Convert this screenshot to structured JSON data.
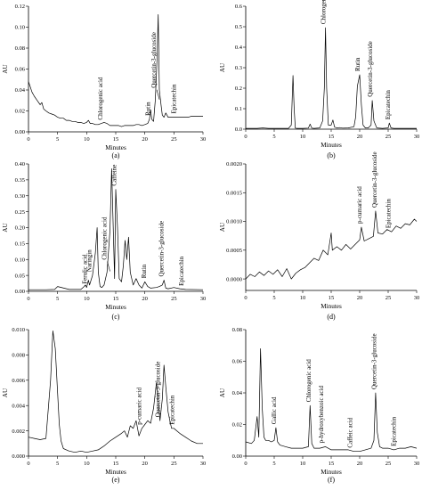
{
  "chart_data": [
    {
      "type": "line",
      "panel_label": "(a)",
      "xlabel": "Minutes",
      "ylabel": "AU",
      "xlim": [
        0,
        30
      ],
      "ylim": [
        0,
        0.12
      ],
      "xticks": [
        0,
        5,
        10,
        15,
        20,
        25,
        30
      ],
      "yticks": [
        0.0,
        0.02,
        0.04,
        0.06,
        0.08,
        0.1,
        0.12
      ],
      "ytick_labels": [
        "0.00",
        "0.02",
        "0.04",
        "0.06",
        "0.08",
        "0.10",
        "0.12"
      ],
      "x": [
        0,
        0.3,
        0.6,
        1,
        1.5,
        2,
        2.3,
        2.6,
        3,
        3.5,
        4,
        4.5,
        5,
        5.5,
        6,
        6.5,
        7,
        7.5,
        8,
        8.5,
        9,
        9.5,
        10,
        10.3,
        10.6,
        11,
        11.5,
        12,
        12.5,
        13,
        13.5,
        14,
        14.5,
        15,
        15.5,
        16,
        16.5,
        17,
        17.5,
        18,
        18.5,
        19,
        19.5,
        20,
        20.5,
        20.8,
        21,
        21.2,
        21.5,
        21.8,
        22,
        22.1,
        22.3,
        22.5,
        22.8,
        23,
        23.3,
        23.6,
        24,
        24.5,
        25,
        25.5,
        26,
        26.5,
        27,
        27.5,
        28,
        28.5,
        29,
        29.5,
        30
      ],
      "y": [
        0.048,
        0.043,
        0.038,
        0.034,
        0.03,
        0.026,
        0.028,
        0.022,
        0.02,
        0.018,
        0.017,
        0.016,
        0.014,
        0.013,
        0.013,
        0.011,
        0.011,
        0.01,
        0.01,
        0.009,
        0.009,
        0.008,
        0.009,
        0.011,
        0.008,
        0.008,
        0.007,
        0.007,
        0.008,
        0.009,
        0.008,
        0.006,
        0.006,
        0.006,
        0.006,
        0.005,
        0.006,
        0.006,
        0.006,
        0.006,
        0.007,
        0.007,
        0.006,
        0.007,
        0.008,
        0.012,
        0.021,
        0.012,
        0.01,
        0.03,
        0.055,
        0.07,
        0.112,
        0.04,
        0.025,
        0.016,
        0.014,
        0.018,
        0.014,
        0.014,
        0.014,
        0.014,
        0.014,
        0.014,
        0.014,
        0.014,
        0.015,
        0.015,
        0.015,
        0.015,
        0.015
      ],
      "annotations": [
        {
          "text": "Chlorogenic acid",
          "x": 12.7
        },
        {
          "text": "Rutin",
          "x": 20.9
        },
        {
          "text": "Quercetin-3-glucoside",
          "x": 21.9,
          "arrow": true
        },
        {
          "text": "Epicatechin",
          "x": 25.3
        }
      ]
    },
    {
      "type": "line",
      "panel_label": "(b)",
      "xlabel": "Minutes",
      "ylabel": "AU",
      "xlim": [
        0,
        30
      ],
      "ylim": [
        0,
        0.6
      ],
      "xticks": [
        0,
        5,
        10,
        15,
        20,
        25,
        30
      ],
      "yticks": [
        0.0,
        0.1,
        0.2,
        0.3,
        0.4,
        0.5,
        0.6
      ],
      "ytick_labels": [
        "0.0",
        "0.1",
        "0.2",
        "0.3",
        "0.4",
        "0.5",
        "0.6"
      ],
      "x": [
        0,
        2,
        3,
        4,
        6,
        7.5,
        8,
        8.3,
        8.5,
        8.7,
        9,
        10,
        11,
        11.3,
        11.6,
        12,
        13,
        13.5,
        13.8,
        14,
        14.2,
        14.5,
        15,
        15.3,
        15.6,
        16,
        16.5,
        17,
        18,
        19,
        19.3,
        19.6,
        20,
        20.3,
        20.6,
        21,
        21.5,
        22,
        22.2,
        22.5,
        23,
        24,
        25,
        25.2,
        25.5,
        26,
        27,
        28,
        30
      ],
      "y": [
        0.004,
        0.004,
        0.006,
        0.004,
        0.004,
        0.004,
        0.02,
        0.262,
        0.1,
        0.005,
        0.004,
        0.004,
        0.005,
        0.025,
        0.005,
        0.004,
        0.006,
        0.04,
        0.2,
        0.495,
        0.2,
        0.02,
        0.02,
        0.045,
        0.01,
        0.006,
        0.008,
        0.005,
        0.006,
        0.012,
        0.06,
        0.21,
        0.265,
        0.12,
        0.02,
        0.006,
        0.006,
        0.02,
        0.14,
        0.04,
        0.006,
        0.004,
        0.006,
        0.03,
        0.006,
        0.004,
        0.004,
        0.004,
        0.004
      ],
      "annotations": [
        {
          "text": "Chlorogenic acid",
          "x": 14.0
        },
        {
          "text": "Rutin",
          "x": 20.0
        },
        {
          "text": "Quercetin-3-glucoside",
          "x": 22.2
        },
        {
          "text": "Epicatechin",
          "x": 25.3
        }
      ]
    },
    {
      "type": "line",
      "panel_label": "(c)",
      "xlabel": "Minutes",
      "ylabel": "AU",
      "xlim": [
        0,
        30
      ],
      "ylim": [
        0,
        0.4
      ],
      "xticks": [
        0,
        5,
        10,
        15,
        20,
        25,
        30
      ],
      "yticks": [
        0.0,
        0.05,
        0.1,
        0.15,
        0.2,
        0.25,
        0.3,
        0.35,
        0.4
      ],
      "ytick_labels": [
        "0.00",
        "0.05",
        "0.10",
        "0.15",
        "0.20",
        "0.25",
        "0.30",
        "0.35",
        "0.40"
      ],
      "x": [
        0,
        3,
        4.5,
        5,
        7,
        9,
        9.5,
        9.8,
        10,
        10.3,
        10.5,
        11,
        11.5,
        11.8,
        12,
        12.3,
        12.6,
        13,
        13.5,
        14,
        14.3,
        14.5,
        14.8,
        15,
        15.3,
        15.6,
        16,
        16.3,
        16.6,
        16.9,
        17.2,
        17.5,
        18,
        18.5,
        19,
        19.5,
        20,
        20.5,
        21,
        22,
        22.5,
        23,
        23.3,
        23.6,
        24,
        25,
        26,
        27,
        30
      ],
      "y": [
        0.005,
        0.005,
        0.006,
        0.015,
        0.006,
        0.006,
        0.014,
        0.02,
        0.012,
        0.035,
        0.02,
        0.05,
        0.12,
        0.2,
        0.06,
        0.015,
        0.012,
        0.02,
        0.06,
        0.19,
        0.385,
        0.25,
        0.04,
        0.32,
        0.2,
        0.04,
        0.03,
        0.08,
        0.16,
        0.1,
        0.17,
        0.06,
        0.02,
        0.04,
        0.02,
        0.01,
        0.03,
        0.015,
        0.01,
        0.012,
        0.015,
        0.02,
        0.035,
        0.01,
        0.008,
        0.012,
        0.008,
        0.006,
        0.005
      ],
      "annotations": [
        {
          "text": "Ferulic acid",
          "x": 10.0
        },
        {
          "text": "Naringin",
          "x": 10.8
        },
        {
          "text": "Chlorogenic acid",
          "x": 13.4,
          "arrow": true
        },
        {
          "text": "Caffeine",
          "x": 15.1
        },
        {
          "text": "Rutin",
          "x": 20.2
        },
        {
          "text": "Quercetin-3-glucoside",
          "x": 23.2
        },
        {
          "text": "Epicatechin",
          "x": 26.6
        }
      ]
    },
    {
      "type": "line",
      "panel_label": "(d)",
      "xlabel": "Minutes",
      "ylabel": "AU",
      "xlim": [
        0,
        30
      ],
      "ylim": [
        -0.0002,
        0.002
      ],
      "xticks": [
        0,
        5,
        10,
        15,
        20,
        25,
        30
      ],
      "yticks": [
        0.0,
        0.0005,
        0.001,
        0.0015,
        0.002
      ],
      "ytick_labels": [
        "0.0000",
        "0.0005",
        "0.0010",
        "0.0015",
        "0.0020"
      ],
      "x": [
        0,
        0.8,
        1.6,
        2.4,
        3.2,
        4,
        4.8,
        5.6,
        6.4,
        7.2,
        8,
        8.8,
        9.6,
        10.4,
        11.2,
        12,
        12.8,
        13.6,
        14.4,
        15,
        15.2,
        16,
        16.8,
        17.6,
        18.4,
        19.2,
        20,
        20.3,
        20.8,
        21.6,
        22.4,
        22.8,
        23.2,
        24,
        24.8,
        25.6,
        26.4,
        27.2,
        28,
        28.8,
        29.6,
        30
      ],
      "y": [
        0.0,
        8e-05,
        4e-05,
        0.00012,
        6e-05,
        0.00014,
        8e-05,
        0.00016,
        4e-05,
        0.00018,
        0.0,
        0.0001,
        0.00016,
        0.0002,
        0.00028,
        0.00036,
        0.00032,
        0.0005,
        0.00042,
        0.0008,
        0.0005,
        0.00056,
        0.0005,
        0.0006,
        0.00052,
        0.0006,
        0.00068,
        0.0009,
        0.00066,
        0.0007,
        0.00074,
        0.00118,
        0.0008,
        0.00078,
        0.00086,
        0.00082,
        0.00092,
        0.00088,
        0.00096,
        0.00094,
        0.00104,
        0.001
      ],
      "annotations": [
        {
          "text": "p-cumaric acid",
          "x": 20.3
        },
        {
          "text": "Quercetin-3-glucoside",
          "x": 23.0
        },
        {
          "text": "Epicatechin",
          "x": 25.4
        }
      ]
    },
    {
      "type": "line",
      "panel_label": "(e)",
      "xlabel": "Minutes",
      "ylabel": "AU",
      "xlim": [
        0,
        30
      ],
      "ylim": [
        0,
        0.01
      ],
      "xticks": [
        0,
        5,
        10,
        15,
        20,
        25,
        30
      ],
      "yticks": [
        0.0,
        0.002,
        0.004,
        0.006,
        0.008,
        0.01
      ],
      "ytick_labels": [
        "0.000",
        "0.002",
        "0.004",
        "0.006",
        "0.008",
        "0.010"
      ],
      "x": [
        0,
        1,
        2,
        3,
        3.8,
        4.2,
        4.6,
        5,
        5.3,
        5.6,
        6,
        6.5,
        7,
        8,
        9,
        10,
        11,
        12,
        13,
        14,
        15,
        16,
        16.5,
        17,
        17.5,
        18,
        18.5,
        19,
        19.5,
        20,
        20.5,
        21,
        21.5,
        22,
        22.3,
        22.6,
        23,
        23.3,
        23.6,
        24,
        24.3,
        24.6,
        25,
        26,
        27,
        28,
        29,
        30
      ],
      "y": [
        0.0015,
        0.0014,
        0.0013,
        0.0014,
        0.006,
        0.0099,
        0.0085,
        0.005,
        0.0025,
        0.0012,
        0.0006,
        0.0005,
        0.0004,
        0.0003,
        0.0004,
        0.0003,
        0.0004,
        0.0005,
        0.0008,
        0.0012,
        0.0015,
        0.0018,
        0.002,
        0.0015,
        0.0024,
        0.0022,
        0.0028,
        0.0016,
        0.0022,
        0.0025,
        0.0028,
        0.0026,
        0.0038,
        0.0058,
        0.0045,
        0.0028,
        0.0045,
        0.0072,
        0.0055,
        0.0035,
        0.0028,
        0.0022,
        0.0022,
        0.0018,
        0.0015,
        0.0012,
        0.001,
        0.001
      ],
      "annotations": [
        {
          "text": "p-cumaric acid",
          "x": 19.4
        },
        {
          "text": "Quercetin-3-glucoside",
          "x": 22.6
        },
        {
          "text": "Epicatechin",
          "x": 25.0
        }
      ]
    },
    {
      "type": "line",
      "panel_label": "(f)",
      "xlabel": "Minutes",
      "ylabel": "AU",
      "xlim": [
        0,
        30
      ],
      "ylim": [
        0,
        0.08
      ],
      "xticks": [
        0,
        5,
        10,
        15,
        20,
        25,
        30
      ],
      "yticks": [
        0.0,
        0.02,
        0.04,
        0.06,
        0.08
      ],
      "ytick_labels": [
        "0.00",
        "0.02",
        "0.04",
        "0.06",
        "0.08"
      ],
      "x": [
        0,
        1,
        1.5,
        2,
        2.3,
        2.6,
        2.9,
        3.2,
        3.5,
        4,
        4.5,
        5,
        5.3,
        5.6,
        6,
        7,
        8,
        9,
        10,
        11,
        11.3,
        11.6,
        12,
        13,
        14,
        15,
        16,
        17,
        18,
        19,
        20,
        21,
        22,
        22.5,
        22.8,
        23.1,
        23.5,
        24,
        25,
        26,
        27,
        28,
        29,
        30
      ],
      "y": [
        0.009,
        0.008,
        0.01,
        0.025,
        0.012,
        0.068,
        0.03,
        0.012,
        0.01,
        0.01,
        0.009,
        0.01,
        0.018,
        0.009,
        0.007,
        0.006,
        0.005,
        0.005,
        0.005,
        0.006,
        0.032,
        0.008,
        0.005,
        0.005,
        0.006,
        0.004,
        0.004,
        0.004,
        0.004,
        0.003,
        0.003,
        0.004,
        0.005,
        0.01,
        0.04,
        0.015,
        0.006,
        0.005,
        0.005,
        0.004,
        0.005,
        0.005,
        0.006,
        0.005
      ],
      "annotations": [
        {
          "text": "Gallic acid",
          "x": 5.3
        },
        {
          "text": "Chlorogenic acid",
          "x": 11.4
        },
        {
          "text": "p-hydroxybenzoic acid",
          "x": 13.6
        },
        {
          "text": "Caffeic acid",
          "x": 18.7
        },
        {
          "text": "Quercetin-3-glucoside",
          "x": 22.9
        },
        {
          "text": "Epicatechin",
          "x": 26.3
        }
      ]
    }
  ]
}
